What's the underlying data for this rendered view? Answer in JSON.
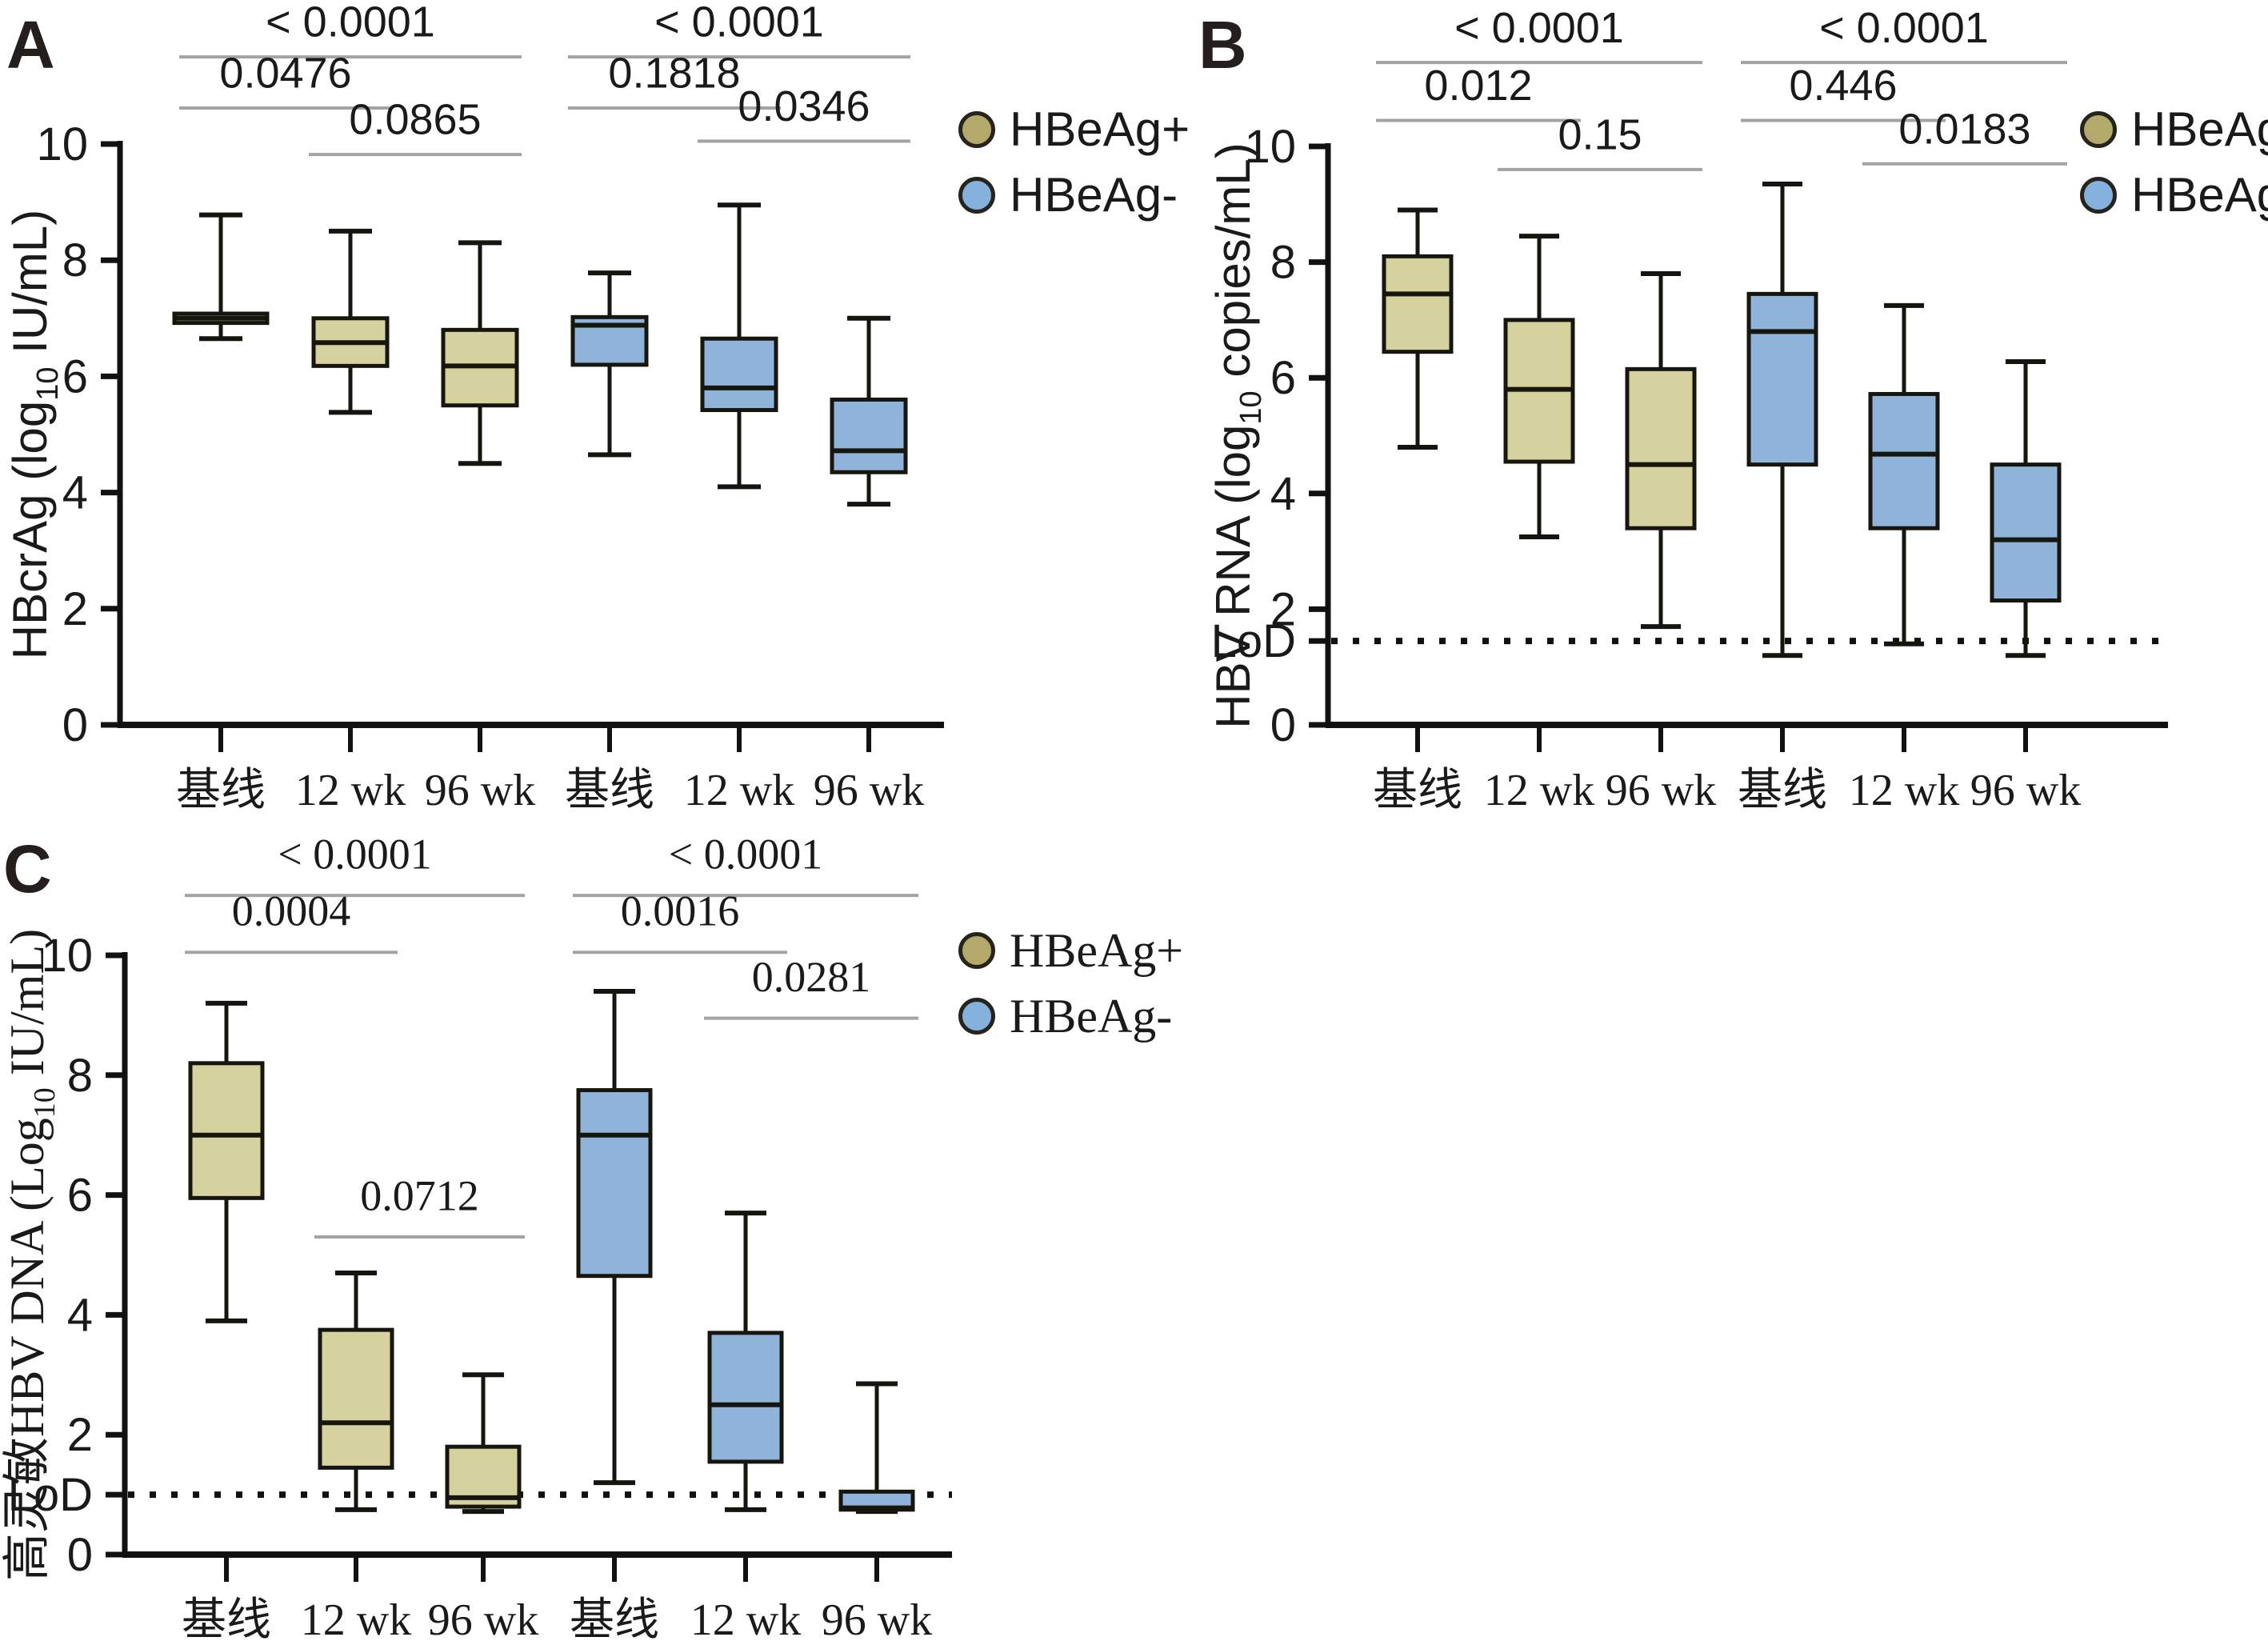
{
  "legend": {
    "items": [
      {
        "label": "HBeAg+",
        "fill": "#b2a96b"
      },
      {
        "label": "HBeAg-",
        "fill": "#85b1dd"
      }
    ]
  },
  "colors": {
    "hbeag_pos_box": "#d5d2a0",
    "hbeag_neg_box": "#8fb3d9",
    "box_stroke": "#16160f",
    "bracket_line": "#a3a3a3",
    "axis": "#111111",
    "text": "#1a1a1a"
  },
  "chart_data": [
    {
      "type": "box",
      "panel_label": "A",
      "ylabel_parts": [
        {
          "t": "HBcrAg (log"
        },
        {
          "t": "10",
          "sub": true
        },
        {
          "t": " IU/mL)"
        }
      ],
      "ylim": [
        0,
        10
      ],
      "yticks": [
        0,
        2,
        4,
        6,
        8,
        10
      ],
      "lod": null,
      "categories": [
        "基线",
        "12 wk",
        "96 wk",
        "基线",
        "12 wk",
        "96 wk"
      ],
      "boxes": [
        {
          "group": "HBeAg+",
          "category": "基线",
          "whislo": 6.65,
          "q1": 6.92,
          "med": 7.0,
          "q3": 7.08,
          "whishi": 8.78,
          "wide": true
        },
        {
          "group": "HBeAg+",
          "category": "12 wk",
          "whislo": 5.38,
          "q1": 6.18,
          "med": 6.58,
          "q3": 7.0,
          "whishi": 8.5
        },
        {
          "group": "HBeAg+",
          "category": "96 wk",
          "whislo": 4.5,
          "q1": 5.5,
          "med": 6.18,
          "q3": 6.8,
          "whishi": 8.3
        },
        {
          "group": "HBeAg-",
          "category": "基线",
          "whislo": 4.65,
          "q1": 6.2,
          "med": 6.88,
          "q3": 7.02,
          "whishi": 7.78
        },
        {
          "group": "HBeAg-",
          "category": "12 wk",
          "whislo": 4.1,
          "q1": 5.42,
          "med": 5.8,
          "q3": 6.65,
          "whishi": 8.95
        },
        {
          "group": "HBeAg-",
          "category": "96 wk",
          "whislo": 3.8,
          "q1": 4.35,
          "med": 4.72,
          "q3": 5.6,
          "whishi": 7.0
        }
      ],
      "brackets": [
        {
          "from": 0,
          "to": 2,
          "label": "< 0.0001",
          "line_y": 11.5,
          "label_y": 11.85
        },
        {
          "from": 0,
          "to": 1,
          "label": "0.0476",
          "line_y": 10.62,
          "label_y": 10.97
        },
        {
          "from": 1,
          "to": 2,
          "label": "0.0865",
          "line_y": 9.82,
          "label_y": 10.17
        },
        {
          "from": 3,
          "to": 5,
          "label": "< 0.0001",
          "line_y": 11.5,
          "label_y": 11.85
        },
        {
          "from": 3,
          "to": 4,
          "label": "0.1818",
          "line_y": 10.62,
          "label_y": 10.97
        },
        {
          "from": 4,
          "to": 5,
          "label": "0.0346",
          "line_y": 10.05,
          "label_y": 10.4
        }
      ]
    },
    {
      "type": "box",
      "panel_label": "B",
      "ylabel_parts": [
        {
          "t": "HBV RNA (log"
        },
        {
          "t": "10",
          "sub": true
        },
        {
          "t": " copies/mL)"
        }
      ],
      "ylim": [
        0,
        10
      ],
      "yticks": [
        0,
        2,
        4,
        6,
        8,
        10
      ],
      "lod": {
        "value": 1.45,
        "label": "LoD"
      },
      "categories": [
        "基线",
        "12 wk",
        "96 wk",
        "基线",
        "12 wk",
        "96 wk"
      ],
      "boxes": [
        {
          "group": "HBeAg+",
          "category": "基线",
          "whislo": 4.8,
          "q1": 6.45,
          "med": 7.45,
          "q3": 8.1,
          "whishi": 8.9
        },
        {
          "group": "HBeAg+",
          "category": "12 wk",
          "whislo": 3.25,
          "q1": 4.55,
          "med": 5.8,
          "q3": 7.0,
          "whishi": 8.45
        },
        {
          "group": "HBeAg+",
          "category": "96 wk",
          "whislo": 1.7,
          "q1": 3.4,
          "med": 4.5,
          "q3": 6.15,
          "whishi": 7.8
        },
        {
          "group": "HBeAg-",
          "category": "基线",
          "whislo": 1.2,
          "q1": 4.5,
          "med": 6.8,
          "q3": 7.45,
          "whishi": 9.35
        },
        {
          "group": "HBeAg-",
          "category": "12 wk",
          "whislo": 1.4,
          "q1": 3.4,
          "med": 4.68,
          "q3": 5.72,
          "whishi": 7.25
        },
        {
          "group": "HBeAg-",
          "category": "96 wk",
          "whislo": 1.2,
          "q1": 2.15,
          "med": 3.2,
          "q3": 4.5,
          "whishi": 6.28
        }
      ],
      "brackets": [
        {
          "from": 0,
          "to": 2,
          "label": "< 0.0001",
          "line_y": 11.45,
          "label_y": 11.8
        },
        {
          "from": 0,
          "to": 1,
          "label": "0.012",
          "line_y": 10.45,
          "label_y": 10.8
        },
        {
          "from": 1,
          "to": 2,
          "label": "0.15",
          "line_y": 9.6,
          "label_y": 9.95
        },
        {
          "from": 3,
          "to": 5,
          "label": "< 0.0001",
          "line_y": 11.45,
          "label_y": 11.8
        },
        {
          "from": 3,
          "to": 4,
          "label": "0.446",
          "line_y": 10.45,
          "label_y": 10.8
        },
        {
          "from": 4,
          "to": 5,
          "label": "0.0183",
          "line_y": 9.7,
          "label_y": 10.05
        }
      ]
    },
    {
      "type": "box",
      "panel_label": "C",
      "ylabel_parts": [
        {
          "t": "高灵敏HBV DNA (Log"
        },
        {
          "t": "10",
          "sub": true
        },
        {
          "t": " IU/mL)"
        }
      ],
      "ylim": [
        0,
        10
      ],
      "yticks": [
        0,
        2,
        4,
        6,
        8,
        10
      ],
      "lod": {
        "value": 1.0,
        "label": "LoD"
      },
      "categories": [
        "基线",
        "12 wk",
        "96 wk",
        "基线",
        "12 wk",
        "96 wk"
      ],
      "boxes": [
        {
          "group": "HBeAg+",
          "category": "基线",
          "whislo": 3.9,
          "q1": 5.95,
          "med": 7.0,
          "q3": 8.2,
          "whishi": 9.2
        },
        {
          "group": "HBeAg+",
          "category": "12 wk",
          "whislo": 0.75,
          "q1": 1.45,
          "med": 2.2,
          "q3": 3.75,
          "whishi": 4.7
        },
        {
          "group": "HBeAg+",
          "category": "96 wk",
          "whislo": 0.72,
          "q1": 0.8,
          "med": 0.95,
          "q3": 1.8,
          "whishi": 3.0
        },
        {
          "group": "HBeAg-",
          "category": "基线",
          "whislo": 1.2,
          "q1": 4.65,
          "med": 7.0,
          "q3": 7.75,
          "whishi": 9.4
        },
        {
          "group": "HBeAg-",
          "category": "12 wk",
          "whislo": 0.75,
          "q1": 1.55,
          "med": 2.5,
          "q3": 3.7,
          "whishi": 5.7
        },
        {
          "group": "HBeAg-",
          "category": "96 wk",
          "whislo": 0.72,
          "q1": 0.75,
          "med": 0.78,
          "q3": 1.05,
          "whishi": 2.85
        }
      ],
      "brackets": [
        {
          "from": 0,
          "to": 2,
          "label": "< 0.0001",
          "line_y": 11.0,
          "label_y": 11.45
        },
        {
          "from": 0,
          "to": 1,
          "label": "0.0004",
          "line_y": 10.05,
          "label_y": 10.5
        },
        {
          "from": 1,
          "to": 2,
          "label": "0.0712",
          "line_y": 5.3,
          "label_y": 5.75
        },
        {
          "from": 3,
          "to": 5,
          "label": "< 0.0001",
          "line_y": 11.0,
          "label_y": 11.45
        },
        {
          "from": 3,
          "to": 4,
          "label": "0.0016",
          "line_y": 10.05,
          "label_y": 10.5
        },
        {
          "from": 4,
          "to": 5,
          "label": "0.0281",
          "line_y": 8.95,
          "label_y": 9.4
        }
      ]
    }
  ]
}
